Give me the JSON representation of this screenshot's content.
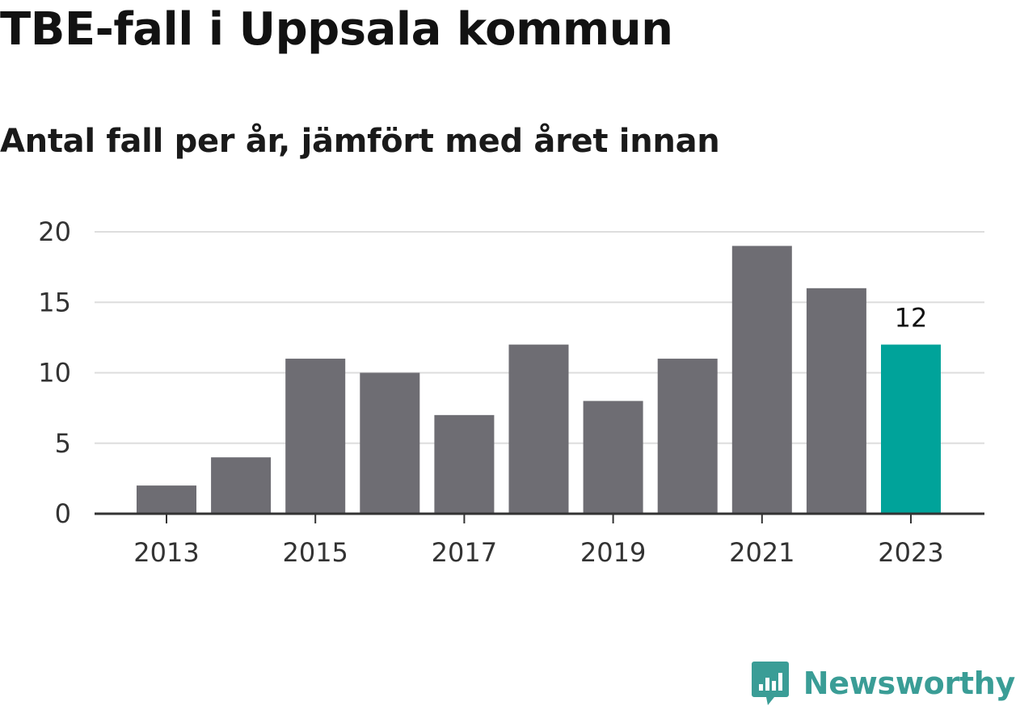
{
  "title": "TBE-fall i Uppsala kommun",
  "subtitle": "Antal fall per år, jämfört med året innan",
  "brand": {
    "name": "Newsworthy",
    "icon": "chart-bubble-icon",
    "color": "#3a9d96"
  },
  "colors": {
    "bar": "#6e6d73",
    "highlight": "#00a39a",
    "grid": "#dddddd",
    "axis": "#333333"
  },
  "chart_data": {
    "type": "bar",
    "categories": [
      "2013",
      "2014",
      "2015",
      "2016",
      "2017",
      "2018",
      "2019",
      "2020",
      "2021",
      "2022",
      "2023"
    ],
    "values": [
      2,
      4,
      11,
      10,
      7,
      12,
      8,
      11,
      19,
      16,
      12
    ],
    "highlight_index": 10,
    "data_labels": [
      {
        "index": 10,
        "text": "12"
      }
    ],
    "x_tick_labels": [
      "2013",
      "2015",
      "2017",
      "2019",
      "2021",
      "2023"
    ],
    "y_ticks": [
      0,
      5,
      10,
      15,
      20
    ],
    "ylim": [
      0,
      20
    ],
    "grid": true,
    "legend": false
  }
}
